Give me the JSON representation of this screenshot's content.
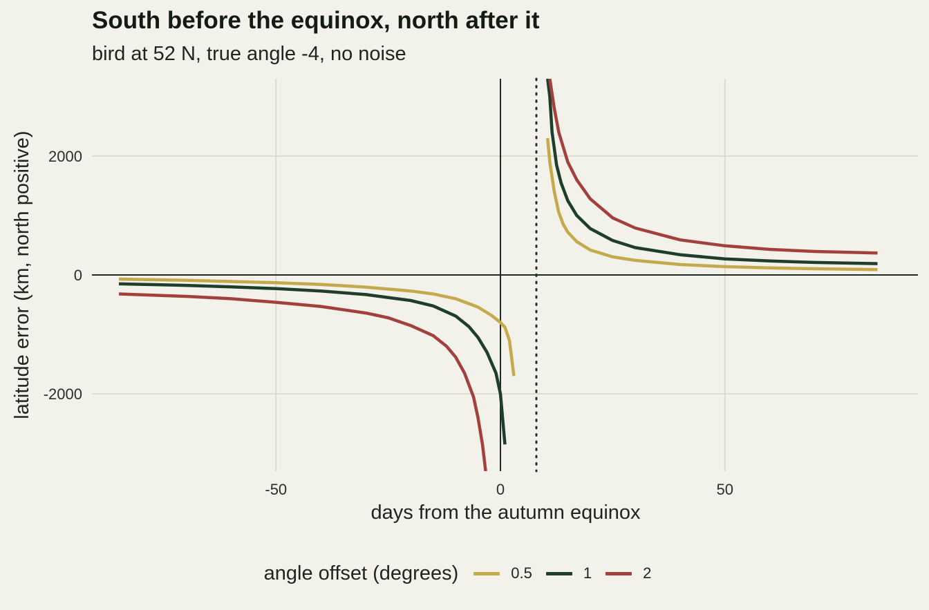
{
  "chart_data": {
    "type": "line",
    "title": "South before the equinox, north after it",
    "subtitle": "bird at 52 N, true angle -4, no noise",
    "xlabel": "days from the autumn equinox",
    "ylabel": "latitude error (km, north positive)",
    "xlim": [
      -91,
      93
    ],
    "ylim": [
      -3300,
      3300
    ],
    "xticks": [
      -50,
      0,
      50
    ],
    "xtick_labels": [
      "-50",
      "0",
      "50"
    ],
    "yticks": [
      -2000,
      0,
      2000
    ],
    "ytick_labels": [
      "-2000",
      "0",
      "2000"
    ],
    "vline_solid_x": 0,
    "vline_dotted_x": 8,
    "hline_y": 0,
    "grid": true,
    "legend": {
      "title": "angle offset (degrees)",
      "position": "bottom"
    },
    "series": [
      {
        "name": "0.5",
        "color": "#c5aa4b",
        "segments": [
          [
            [
              -85,
              -70
            ],
            [
              -70,
              -90
            ],
            [
              -60,
              -110
            ],
            [
              -50,
              -130
            ],
            [
              -40,
              -160
            ],
            [
              -30,
              -205
            ],
            [
              -20,
              -270
            ],
            [
              -15,
              -320
            ],
            [
              -10,
              -400
            ],
            [
              -5,
              -540
            ],
            [
              -2,
              -680
            ],
            [
              0,
              -800
            ],
            [
              1,
              -880
            ],
            [
              2,
              -1100
            ],
            [
              3,
              -1700
            ]
          ],
          [
            [
              10.5,
              2300
            ],
            [
              11,
              1900
            ],
            [
              12,
              1400
            ],
            [
              13,
              1050
            ],
            [
              14,
              850
            ],
            [
              15,
              720
            ],
            [
              17,
              560
            ],
            [
              20,
              420
            ],
            [
              25,
              305
            ],
            [
              30,
              245
            ],
            [
              40,
              175
            ],
            [
              50,
              140
            ],
            [
              60,
              118
            ],
            [
              70,
              104
            ],
            [
              84,
              90
            ]
          ]
        ]
      },
      {
        "name": "1",
        "color": "#1f3d2b",
        "segments": [
          [
            [
              -85,
              -150
            ],
            [
              -70,
              -175
            ],
            [
              -60,
              -200
            ],
            [
              -50,
              -230
            ],
            [
              -40,
              -270
            ],
            [
              -30,
              -330
            ],
            [
              -20,
              -430
            ],
            [
              -15,
              -520
            ],
            [
              -10,
              -690
            ],
            [
              -7,
              -870
            ],
            [
              -5,
              -1050
            ],
            [
              -3,
              -1300
            ],
            [
              -1,
              -1650
            ],
            [
              0,
              -2000
            ],
            [
              1,
              -2850
            ]
          ],
          [
            [
              10.5,
              3300
            ],
            [
              11,
              3000
            ],
            [
              11.5,
              2400
            ],
            [
              12.5,
              1850
            ],
            [
              13.5,
              1550
            ],
            [
              15,
              1250
            ],
            [
              17,
              1000
            ],
            [
              20,
              780
            ],
            [
              25,
              580
            ],
            [
              30,
              460
            ],
            [
              40,
              340
            ],
            [
              50,
              270
            ],
            [
              60,
              235
            ],
            [
              70,
              210
            ],
            [
              84,
              190
            ]
          ]
        ]
      },
      {
        "name": "2",
        "color": "#a3403d",
        "segments": [
          [
            [
              -85,
              -320
            ],
            [
              -70,
              -360
            ],
            [
              -60,
              -400
            ],
            [
              -50,
              -460
            ],
            [
              -40,
              -530
            ],
            [
              -30,
              -640
            ],
            [
              -25,
              -720
            ],
            [
              -20,
              -850
            ],
            [
              -15,
              -1020
            ],
            [
              -12,
              -1200
            ],
            [
              -10,
              -1380
            ],
            [
              -8,
              -1650
            ],
            [
              -6,
              -2050
            ],
            [
              -5,
              -2400
            ],
            [
              -4,
              -2850
            ],
            [
              -3.3,
              -3300
            ]
          ],
          [
            [
              11,
              3300
            ],
            [
              12,
              2800
            ],
            [
              13,
              2400
            ],
            [
              14,
              2150
            ],
            [
              15,
              1900
            ],
            [
              17,
              1600
            ],
            [
              20,
              1280
            ],
            [
              25,
              960
            ],
            [
              30,
              790
            ],
            [
              40,
              590
            ],
            [
              50,
              490
            ],
            [
              60,
              430
            ],
            [
              70,
              395
            ],
            [
              84,
              370
            ]
          ]
        ]
      }
    ]
  }
}
